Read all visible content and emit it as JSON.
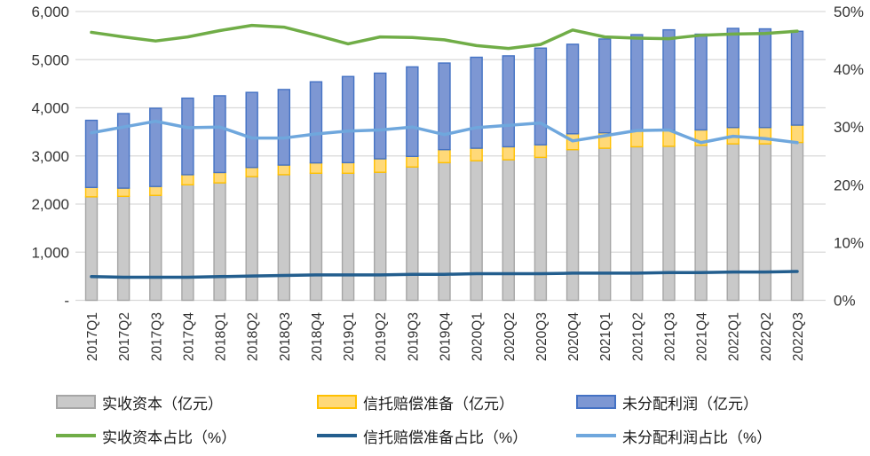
{
  "chart_data": {
    "type": "bar",
    "subtype": "stacked-bar-with-lines-dual-axis",
    "title": "",
    "categories": [
      "2017Q1",
      "2017Q2",
      "2017Q3",
      "2017Q4",
      "2018Q1",
      "2018Q2",
      "2018Q3",
      "2018Q4",
      "2019Q1",
      "2019Q2",
      "2019Q3",
      "2019Q4",
      "2020Q1",
      "2020Q2",
      "2020Q3",
      "2020Q4",
      "2021Q1",
      "2021Q2",
      "2021Q3",
      "2021Q4",
      "2022Q1",
      "2022Q2",
      "2022Q3"
    ],
    "bar_series": [
      {
        "name": "实收资本（亿元）",
        "axis": "left",
        "stack": true,
        "values": [
          2150,
          2160,
          2180,
          2400,
          2440,
          2570,
          2610,
          2640,
          2640,
          2660,
          2770,
          2860,
          2900,
          2920,
          2970,
          3130,
          3160,
          3190,
          3200,
          3220,
          3250,
          3250,
          3280
        ]
      },
      {
        "name": "信托赔偿准备（亿元）",
        "axis": "left",
        "stack": true,
        "values": [
          195,
          170,
          185,
          210,
          215,
          190,
          200,
          215,
          220,
          280,
          220,
          270,
          260,
          270,
          260,
          330,
          320,
          340,
          330,
          320,
          340,
          340,
          360
        ]
      },
      {
        "name": "未分配利润（亿元）",
        "axis": "left",
        "stack": true,
        "values": [
          1395,
          1550,
          1625,
          1590,
          1595,
          1560,
          1570,
          1685,
          1790,
          1780,
          1860,
          1800,
          1890,
          1890,
          2010,
          1860,
          1950,
          1990,
          2090,
          1990,
          2060,
          2050,
          1950
        ]
      }
    ],
    "line_series": [
      {
        "name": "实收资本占比（%）",
        "axis": "right",
        "values": [
          46.4,
          45.6,
          44.9,
          45.6,
          46.7,
          47.6,
          47.3,
          45.9,
          44.4,
          45.6,
          45.5,
          45.1,
          44.1,
          43.6,
          44.3,
          46.8,
          45.6,
          45.4,
          45.3,
          45.9,
          46.1,
          46.2,
          46.6
        ]
      },
      {
        "name": "信托赔偿准备占比（%）",
        "axis": "right",
        "values": [
          4.1,
          4.0,
          4.0,
          4.0,
          4.1,
          4.2,
          4.3,
          4.4,
          4.4,
          4.4,
          4.5,
          4.5,
          4.6,
          4.6,
          4.6,
          4.7,
          4.7,
          4.7,
          4.8,
          4.8,
          4.9,
          4.9,
          5.0
        ]
      },
      {
        "name": "未分配利润占比（%）",
        "axis": "right",
        "values": [
          29.0,
          30.0,
          31.0,
          29.9,
          30.0,
          28.1,
          28.1,
          28.8,
          29.3,
          29.5,
          30.0,
          28.7,
          29.9,
          30.3,
          30.7,
          27.6,
          28.5,
          29.4,
          29.5,
          27.3,
          28.4,
          28.0,
          27.3
        ]
      }
    ],
    "left_axis": {
      "min": 0,
      "max": 6000,
      "step": 1000,
      "tick_labels": [
        "6,000",
        "5,000",
        "4,000",
        "3,000",
        "2,000",
        "1,000",
        "-"
      ]
    },
    "right_axis": {
      "min": 0,
      "max": 50,
      "step": 10,
      "tick_labels": [
        "50%",
        "40%",
        "30%",
        "20%",
        "10%",
        "0%"
      ]
    },
    "grid": true,
    "legend_position": "bottom"
  },
  "colors": {
    "bar_paid_in_fill": "#C9C9C9",
    "bar_paid_in_border": "#A6A6A6",
    "bar_reserve_fill": "#FFD978",
    "bar_reserve_border": "#FFC000",
    "bar_undistributed_fill": "#7D97D3",
    "bar_undistributed_border": "#4472C4",
    "line_paid_in_ratio": "#70AD47",
    "line_reserve_ratio": "#235E8E",
    "line_undistributed_ratio": "#6FA7DD",
    "gridline": "#D9D9D9",
    "axis_text": "#333333"
  }
}
